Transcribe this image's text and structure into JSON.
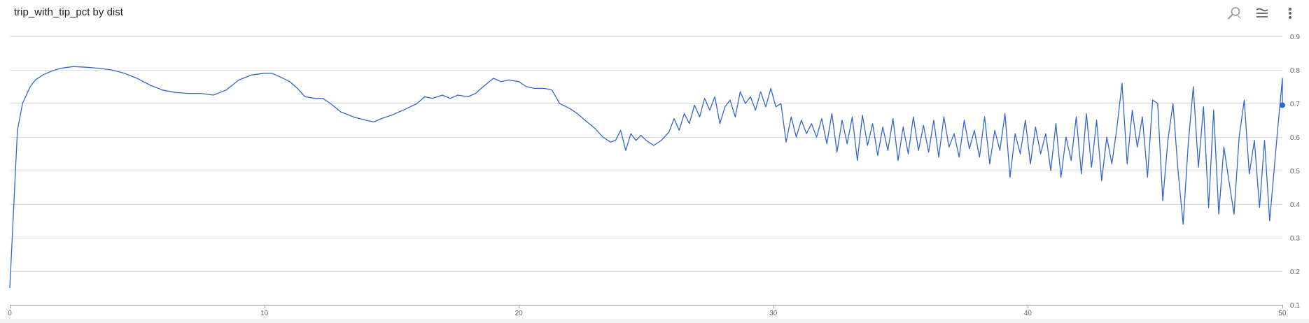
{
  "chart_title": "trip_with_tip_pct by dist",
  "toolbar": {
    "zoom_icon": "zoom-icon",
    "series_menu_icon": "series-menu-icon",
    "more_icon": "more-vert-icon"
  },
  "colors": {
    "line": "#3366cc",
    "grid": "#e0e0e0",
    "axis": "#9e9e9e",
    "tick_text": "#5f6368"
  },
  "chart_data": {
    "type": "line",
    "title": "trip_with_tip_pct by dist",
    "xlabel": "",
    "ylabel": "",
    "xlim": [
      0,
      50
    ],
    "ylim": [
      0.1,
      0.9
    ],
    "x_ticks": [
      0,
      10,
      20,
      30,
      40,
      50
    ],
    "y_ticks": [
      0.1,
      0.2,
      0.3,
      0.4,
      0.5,
      0.6,
      0.7,
      0.8,
      0.9
    ],
    "y_axis_side": "right",
    "grid": true,
    "legend": "none",
    "series": [
      {
        "values": [
          [
            0.0,
            0.15
          ],
          [
            0.3,
            0.62
          ],
          [
            0.5,
            0.7
          ],
          [
            0.8,
            0.75
          ],
          [
            1.0,
            0.77
          ],
          [
            1.3,
            0.785
          ],
          [
            1.6,
            0.795
          ],
          [
            2.0,
            0.805
          ],
          [
            2.5,
            0.81
          ],
          [
            3.0,
            0.808
          ],
          [
            3.5,
            0.805
          ],
          [
            4.0,
            0.8
          ],
          [
            4.5,
            0.79
          ],
          [
            5.0,
            0.775
          ],
          [
            5.5,
            0.755
          ],
          [
            6.0,
            0.74
          ],
          [
            6.5,
            0.733
          ],
          [
            7.0,
            0.73
          ],
          [
            7.5,
            0.73
          ],
          [
            8.0,
            0.725
          ],
          [
            8.5,
            0.74
          ],
          [
            9.0,
            0.77
          ],
          [
            9.5,
            0.785
          ],
          [
            10.0,
            0.79
          ],
          [
            10.3,
            0.79
          ],
          [
            10.6,
            0.78
          ],
          [
            11.0,
            0.765
          ],
          [
            11.3,
            0.745
          ],
          [
            11.6,
            0.72
          ],
          [
            12.0,
            0.715
          ],
          [
            12.3,
            0.715
          ],
          [
            12.6,
            0.7
          ],
          [
            13.0,
            0.675
          ],
          [
            13.5,
            0.66
          ],
          [
            14.0,
            0.65
          ],
          [
            14.3,
            0.645
          ],
          [
            14.6,
            0.655
          ],
          [
            15.0,
            0.665
          ],
          [
            15.3,
            0.675
          ],
          [
            15.6,
            0.685
          ],
          [
            16.0,
            0.7
          ],
          [
            16.3,
            0.72
          ],
          [
            16.6,
            0.715
          ],
          [
            17.0,
            0.725
          ],
          [
            17.3,
            0.715
          ],
          [
            17.6,
            0.725
          ],
          [
            18.0,
            0.72
          ],
          [
            18.3,
            0.73
          ],
          [
            18.6,
            0.75
          ],
          [
            19.0,
            0.775
          ],
          [
            19.3,
            0.765
          ],
          [
            19.6,
            0.77
          ],
          [
            20.0,
            0.765
          ],
          [
            20.3,
            0.75
          ],
          [
            20.6,
            0.745
          ],
          [
            21.0,
            0.745
          ],
          [
            21.3,
            0.74
          ],
          [
            21.6,
            0.7
          ],
          [
            22.0,
            0.685
          ],
          [
            22.3,
            0.67
          ],
          [
            22.6,
            0.65
          ],
          [
            23.0,
            0.625
          ],
          [
            23.3,
            0.6
          ],
          [
            23.6,
            0.585
          ],
          [
            23.8,
            0.59
          ],
          [
            24.0,
            0.62
          ],
          [
            24.2,
            0.56
          ],
          [
            24.4,
            0.61
          ],
          [
            24.6,
            0.59
          ],
          [
            24.8,
            0.605
          ],
          [
            25.0,
            0.59
          ],
          [
            25.3,
            0.575
          ],
          [
            25.6,
            0.59
          ],
          [
            25.9,
            0.615
          ],
          [
            26.1,
            0.655
          ],
          [
            26.3,
            0.62
          ],
          [
            26.5,
            0.67
          ],
          [
            26.7,
            0.64
          ],
          [
            26.9,
            0.695
          ],
          [
            27.1,
            0.66
          ],
          [
            27.3,
            0.715
          ],
          [
            27.5,
            0.68
          ],
          [
            27.7,
            0.72
          ],
          [
            27.9,
            0.64
          ],
          [
            28.1,
            0.69
          ],
          [
            28.3,
            0.71
          ],
          [
            28.5,
            0.66
          ],
          [
            28.7,
            0.735
          ],
          [
            28.9,
            0.7
          ],
          [
            29.1,
            0.72
          ],
          [
            29.3,
            0.68
          ],
          [
            29.5,
            0.735
          ],
          [
            29.7,
            0.69
          ],
          [
            29.9,
            0.745
          ],
          [
            30.1,
            0.69
          ],
          [
            30.3,
            0.7
          ],
          [
            30.5,
            0.585
          ],
          [
            30.7,
            0.66
          ],
          [
            30.9,
            0.6
          ],
          [
            31.1,
            0.65
          ],
          [
            31.3,
            0.61
          ],
          [
            31.5,
            0.64
          ],
          [
            31.7,
            0.6
          ],
          [
            31.9,
            0.655
          ],
          [
            32.1,
            0.58
          ],
          [
            32.3,
            0.67
          ],
          [
            32.5,
            0.555
          ],
          [
            32.7,
            0.65
          ],
          [
            32.9,
            0.58
          ],
          [
            33.1,
            0.66
          ],
          [
            33.3,
            0.53
          ],
          [
            33.5,
            0.665
          ],
          [
            33.7,
            0.575
          ],
          [
            33.9,
            0.64
          ],
          [
            34.1,
            0.545
          ],
          [
            34.3,
            0.63
          ],
          [
            34.5,
            0.56
          ],
          [
            34.7,
            0.655
          ],
          [
            34.9,
            0.53
          ],
          [
            35.1,
            0.63
          ],
          [
            35.3,
            0.55
          ],
          [
            35.5,
            0.66
          ],
          [
            35.7,
            0.56
          ],
          [
            35.9,
            0.635
          ],
          [
            36.1,
            0.555
          ],
          [
            36.3,
            0.65
          ],
          [
            36.5,
            0.54
          ],
          [
            36.7,
            0.66
          ],
          [
            36.9,
            0.57
          ],
          [
            37.1,
            0.61
          ],
          [
            37.3,
            0.54
          ],
          [
            37.5,
            0.65
          ],
          [
            37.7,
            0.565
          ],
          [
            37.9,
            0.62
          ],
          [
            38.1,
            0.54
          ],
          [
            38.3,
            0.66
          ],
          [
            38.5,
            0.52
          ],
          [
            38.7,
            0.62
          ],
          [
            38.9,
            0.56
          ],
          [
            39.1,
            0.67
          ],
          [
            39.3,
            0.48
          ],
          [
            39.5,
            0.61
          ],
          [
            39.7,
            0.55
          ],
          [
            39.9,
            0.65
          ],
          [
            40.1,
            0.52
          ],
          [
            40.3,
            0.63
          ],
          [
            40.5,
            0.55
          ],
          [
            40.7,
            0.61
          ],
          [
            40.9,
            0.5
          ],
          [
            41.1,
            0.64
          ],
          [
            41.3,
            0.48
          ],
          [
            41.5,
            0.6
          ],
          [
            41.7,
            0.53
          ],
          [
            41.9,
            0.66
          ],
          [
            42.1,
            0.49
          ],
          [
            42.3,
            0.67
          ],
          [
            42.5,
            0.51
          ],
          [
            42.7,
            0.65
          ],
          [
            42.9,
            0.47
          ],
          [
            43.1,
            0.6
          ],
          [
            43.3,
            0.52
          ],
          [
            43.5,
            0.63
          ],
          [
            43.7,
            0.76
          ],
          [
            43.9,
            0.52
          ],
          [
            44.1,
            0.68
          ],
          [
            44.3,
            0.57
          ],
          [
            44.5,
            0.66
          ],
          [
            44.7,
            0.48
          ],
          [
            44.9,
            0.71
          ],
          [
            45.1,
            0.7
          ],
          [
            45.3,
            0.41
          ],
          [
            45.5,
            0.59
          ],
          [
            45.7,
            0.7
          ],
          [
            45.9,
            0.5
          ],
          [
            46.1,
            0.34
          ],
          [
            46.3,
            0.58
          ],
          [
            46.5,
            0.75
          ],
          [
            46.7,
            0.51
          ],
          [
            46.9,
            0.69
          ],
          [
            47.1,
            0.39
          ],
          [
            47.3,
            0.68
          ],
          [
            47.5,
            0.37
          ],
          [
            47.7,
            0.57
          ],
          [
            47.9,
            0.47
          ],
          [
            48.1,
            0.37
          ],
          [
            48.3,
            0.6
          ],
          [
            48.5,
            0.71
          ],
          [
            48.7,
            0.49
          ],
          [
            48.9,
            0.59
          ],
          [
            49.1,
            0.39
          ],
          [
            49.3,
            0.59
          ],
          [
            49.5,
            0.35
          ],
          [
            49.8,
            0.61
          ],
          [
            50.0,
            0.775
          ],
          [
            50.0,
            0.695
          ]
        ]
      }
    ]
  }
}
